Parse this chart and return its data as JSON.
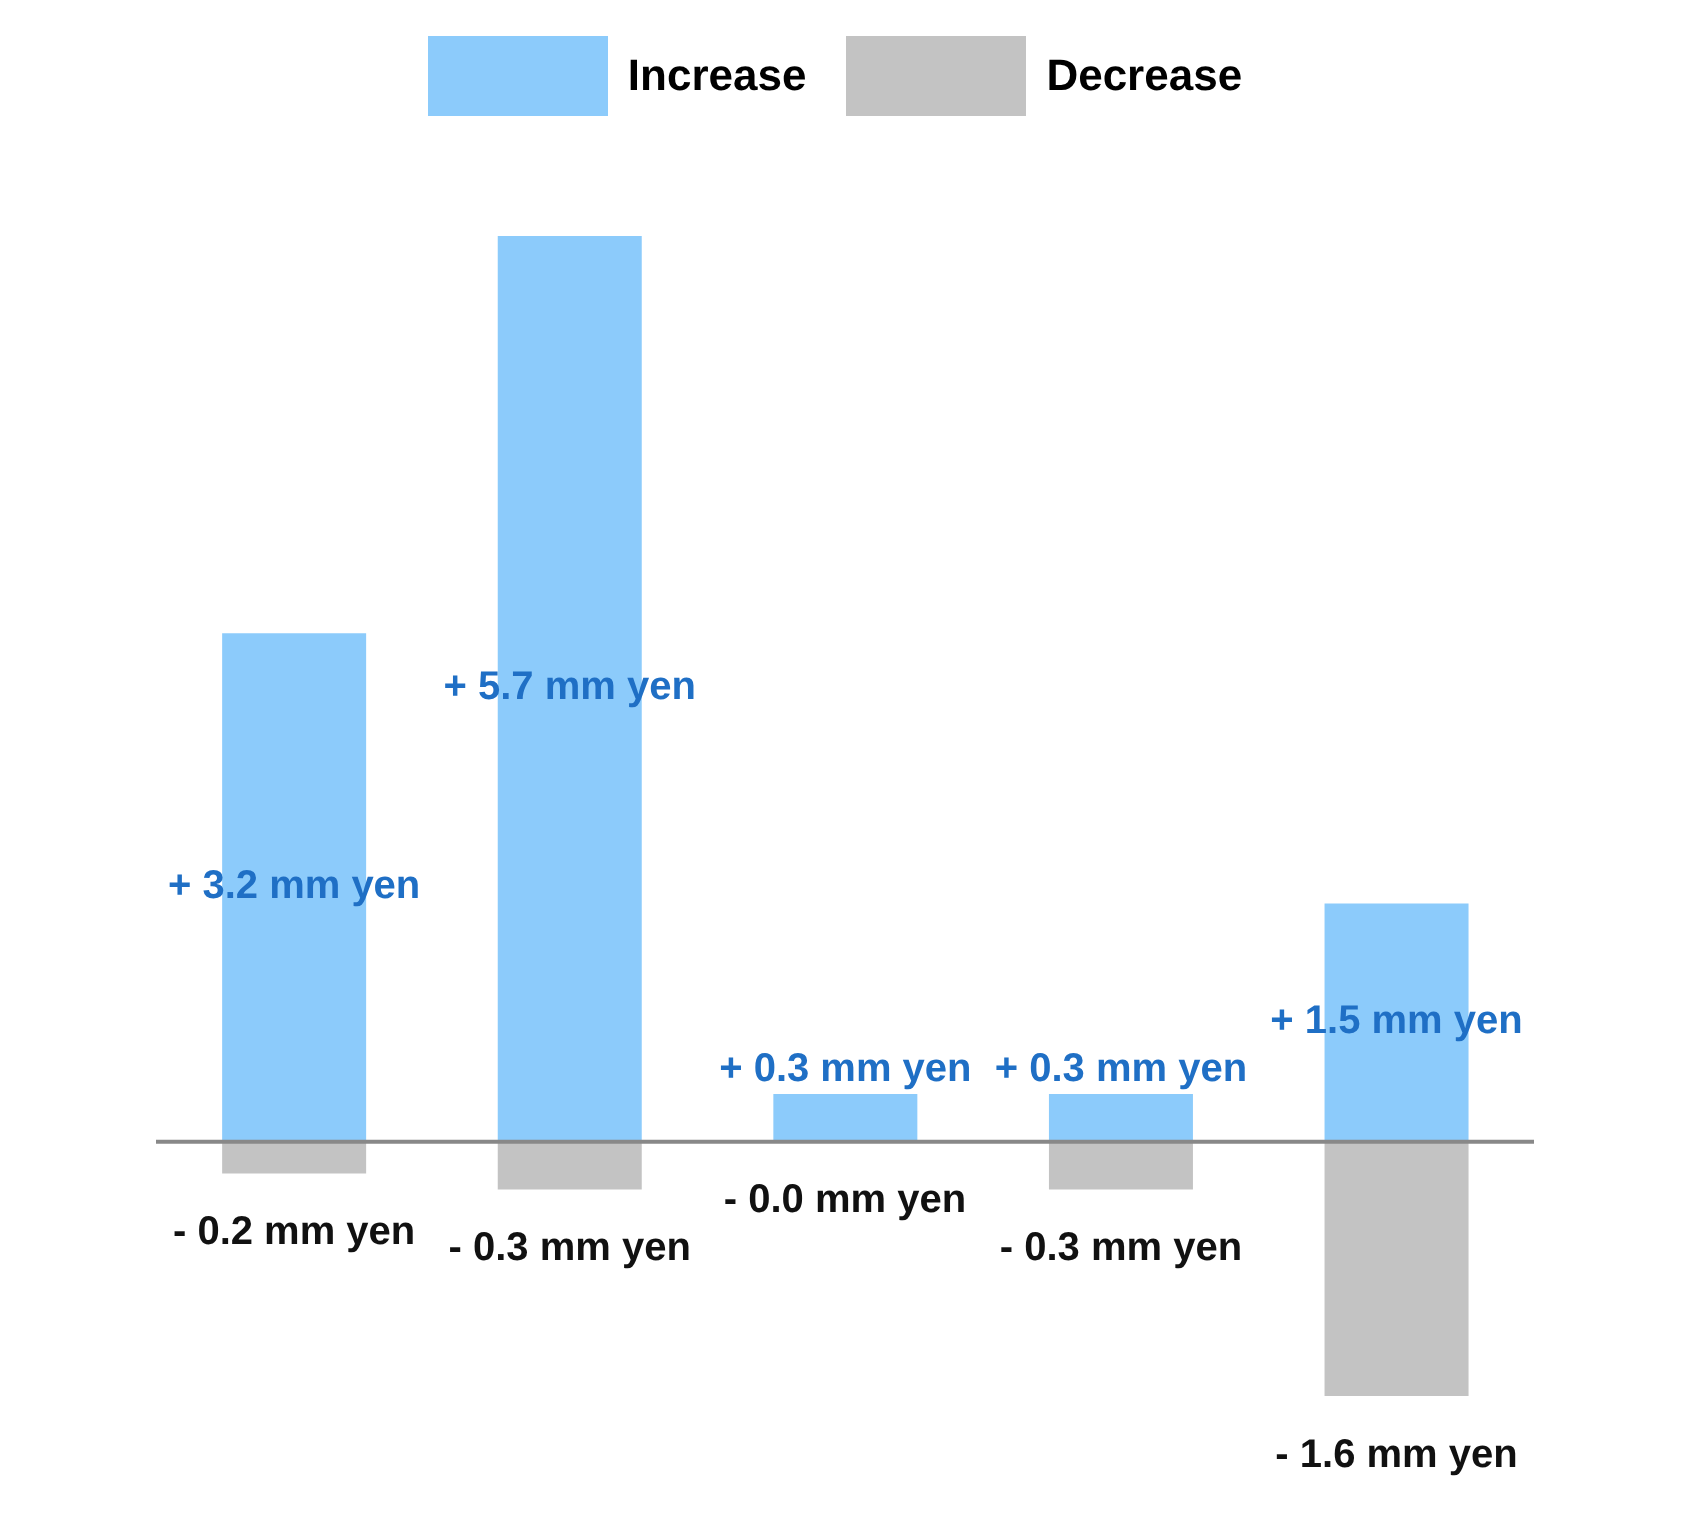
{
  "chart_data": {
    "type": "bar",
    "stacked": true,
    "categories": [
      null,
      null,
      null,
      null,
      null
    ],
    "legend": "top",
    "series": [
      {
        "name": "Increase",
        "color": "#8ccbfb",
        "values": [
          3.2,
          5.7,
          0.3,
          0.3,
          1.5
        ],
        "value_labels": [
          "+ 3.2 mm yen",
          "+ 5.7 mm yen",
          "+ 0.3 mm yen",
          "+ 0.3 mm yen",
          "+ 1.5 mm yen"
        ]
      },
      {
        "name": "Decrease",
        "color": "#c3c3c3",
        "values": [
          -0.2,
          -0.3,
          0,
          -0.3,
          -1.6
        ],
        "value_labels": [
          "- 0.2 mm yen",
          "- 0.3 mm yen",
          "- 0.0 mm yen",
          "- 0.3 mm yen",
          "- 1.6 mm yen"
        ]
      }
    ]
  }
}
